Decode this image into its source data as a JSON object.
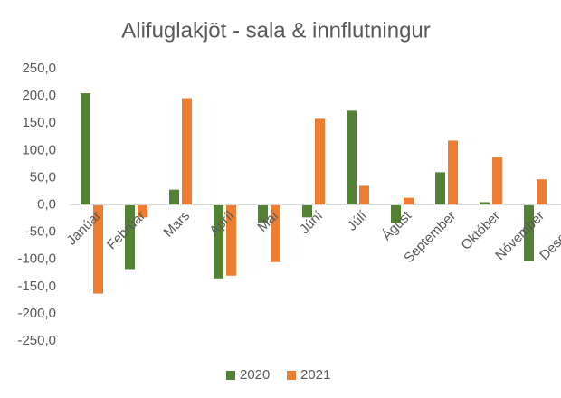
{
  "chart_data": {
    "type": "bar",
    "title": "Alifuglakjöt - sala & innflutningur",
    "categories": [
      "Janúar",
      "Febrúar",
      "Mars",
      "Apríl",
      "Maí",
      "Júní",
      "Júlí",
      "Ágúst",
      "September",
      "Október",
      "Nóvember",
      "Desember"
    ],
    "series": [
      {
        "name": "2020",
        "color": "#548235",
        "values": [
          205,
          -118,
          28,
          -135,
          -33,
          -23,
          173,
          -33,
          60,
          5,
          -103,
          null
        ]
      },
      {
        "name": "2021",
        "color": "#ed7d31",
        "values": [
          -163,
          -23,
          196,
          -130,
          -105,
          158,
          35,
          13,
          118,
          87,
          47,
          null
        ]
      }
    ],
    "ylim": [
      -250,
      250
    ],
    "yticks": [
      {
        "value": -250,
        "label": "-250,0"
      },
      {
        "value": -200,
        "label": "-200,0"
      },
      {
        "value": -150,
        "label": "-150,0"
      },
      {
        "value": -100,
        "label": "-100,0"
      },
      {
        "value": -50,
        "label": "-50,0"
      },
      {
        "value": 0,
        "label": "0,0"
      },
      {
        "value": 50,
        "label": "50,0"
      },
      {
        "value": 100,
        "label": "100,0"
      },
      {
        "value": 150,
        "label": "150,0"
      },
      {
        "value": 200,
        "label": "200,0"
      },
      {
        "value": 250,
        "label": "250,0"
      }
    ],
    "grid": false,
    "legend": "bottom"
  }
}
